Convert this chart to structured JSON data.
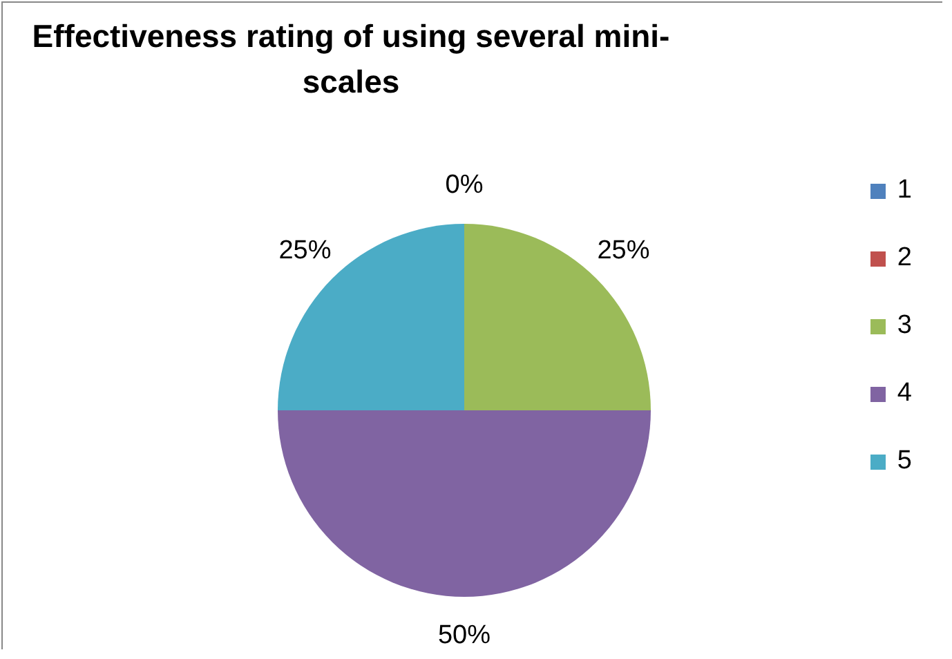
{
  "chart_data": {
    "type": "pie",
    "title": "Effectiveness rating of using several mini-scales",
    "categories": [
      "1",
      "2",
      "3",
      "4",
      "5"
    ],
    "values": [
      0,
      0,
      25,
      50,
      25
    ],
    "value_labels": [
      "0%",
      null,
      "25%",
      "50%",
      "25%"
    ],
    "colors": [
      "#4f81bd",
      "#c0504d",
      "#9bbb59",
      "#8064a2",
      "#4bacc6"
    ],
    "legend": "right"
  }
}
